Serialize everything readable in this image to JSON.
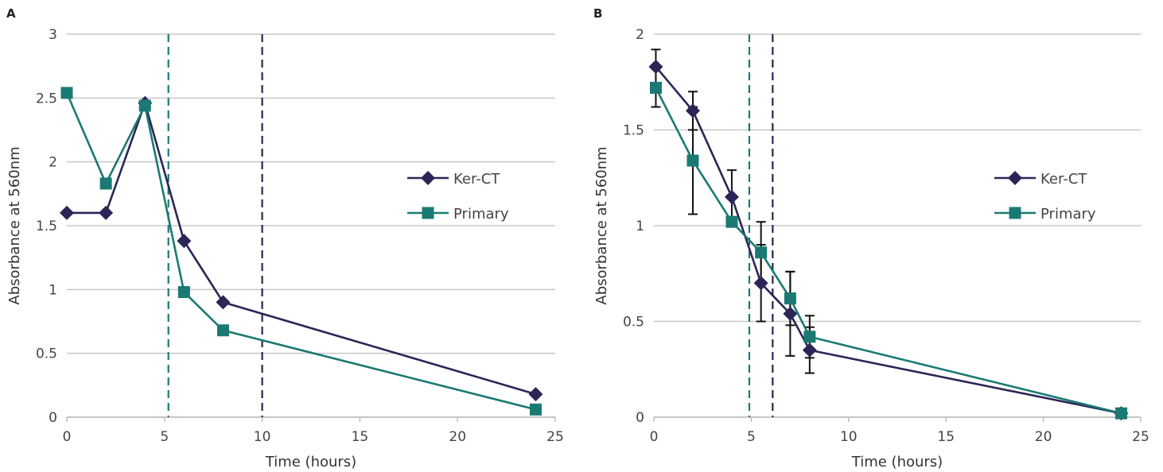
{
  "chart_data": [
    {
      "type": "line",
      "panel_label": "A",
      "xlabel": "Time (hours)",
      "ylabel": "Absorbance at 560nm",
      "xlim": [
        0,
        25
      ],
      "ylim": [
        0,
        3
      ],
      "xticks": [
        "0",
        "5",
        "10",
        "15",
        "20",
        "25"
      ],
      "yticks": [
        "0",
        "0.5",
        "1",
        "1.5",
        "2",
        "2.5",
        "3"
      ],
      "grid": "horizontal",
      "legend": "right",
      "series": [
        {
          "name": "Ker-CT",
          "color": "#2b2557",
          "marker": "diamond",
          "x": [
            0,
            2,
            4,
            6,
            8,
            24
          ],
          "y": [
            1.6,
            1.6,
            2.46,
            1.38,
            0.9,
            0.18
          ]
        },
        {
          "name": "Primary",
          "color": "#1a7a73",
          "marker": "square",
          "x": [
            0,
            2,
            4,
            6,
            8,
            24
          ],
          "y": [
            2.54,
            1.83,
            2.44,
            0.98,
            0.68,
            0.06
          ]
        }
      ],
      "vlines": [
        {
          "x": 5.2,
          "color": "#1a7a73"
        },
        {
          "x": 10.0,
          "color": "#2b2557"
        }
      ]
    },
    {
      "type": "line",
      "panel_label": "B",
      "xlabel": "Time (hours)",
      "ylabel": "Absorbance at 560nm",
      "xlim": [
        0,
        25
      ],
      "ylim": [
        0,
        2
      ],
      "xticks": [
        "0",
        "5",
        "10",
        "15",
        "20",
        "25"
      ],
      "yticks": [
        "0",
        "0.5",
        "1",
        "1.5",
        "2"
      ],
      "grid": "horizontal",
      "legend": "right",
      "series": [
        {
          "name": "Ker-CT",
          "color": "#2b2557",
          "marker": "diamond",
          "x": [
            0.1,
            2,
            4,
            5.5,
            7,
            8,
            24
          ],
          "y": [
            1.83,
            1.6,
            1.15,
            0.7,
            0.54,
            0.35,
            0.02
          ],
          "err": [
            0.09,
            0.1,
            0.14,
            0.2,
            0.22,
            0.12,
            0.0
          ]
        },
        {
          "name": "Primary",
          "color": "#1a7a73",
          "marker": "square",
          "x": [
            0.1,
            2,
            4,
            5.5,
            7,
            8,
            24
          ],
          "y": [
            1.72,
            1.34,
            1.02,
            0.86,
            0.62,
            0.42,
            0.02
          ],
          "err": [
            0.1,
            0.28,
            0.0,
            0.16,
            0.14,
            0.11,
            0.0
          ]
        }
      ],
      "vlines": [
        {
          "x": 4.9,
          "color": "#1a7a73"
        },
        {
          "x": 6.1,
          "color": "#2b2557"
        }
      ]
    }
  ]
}
